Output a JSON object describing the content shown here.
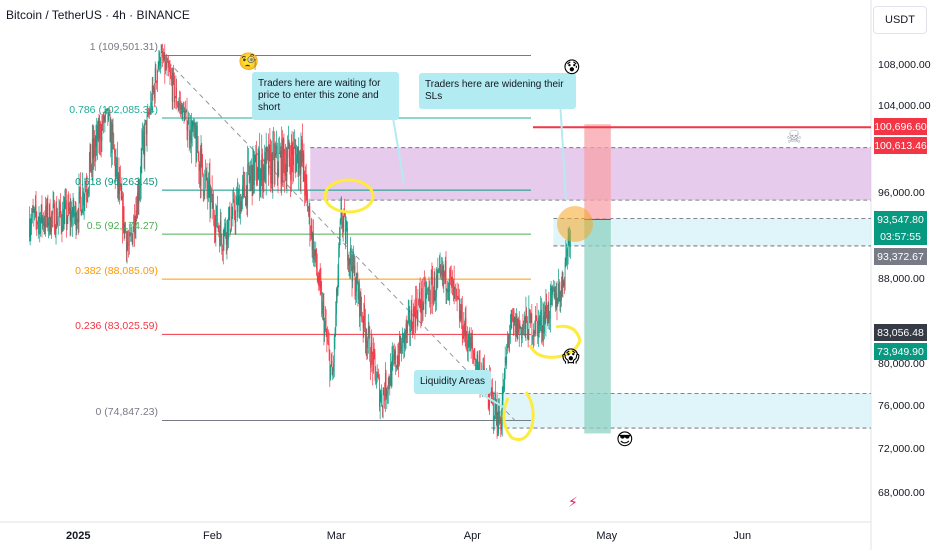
{
  "header": {
    "symbol": "Bitcoin / TetherUS · 4h · BINANCE",
    "currency": "USDT"
  },
  "chart_data": {
    "type": "candlestick",
    "ylim": [
      66500,
      112000
    ],
    "y_ticks": [
      {
        "value": 108000,
        "label": "108,000.00"
      },
      {
        "value": 104000,
        "label": "104,000.00"
      },
      {
        "value": 96000,
        "label": "96,000.00"
      },
      {
        "value": 88000,
        "label": "88,000.00"
      },
      {
        "value": 80000,
        "label": "80,000.00"
      },
      {
        "value": 76000,
        "label": "76,000.00"
      },
      {
        "value": 72000,
        "label": "72,000.00"
      },
      {
        "value": 68000,
        "label": "68,000.00"
      }
    ],
    "x_ticks": [
      {
        "label": "2025",
        "date": "2025-01-01"
      },
      {
        "label": "Feb",
        "date": "2025-02-01"
      },
      {
        "label": "Mar",
        "date": "2025-03-01"
      },
      {
        "label": "Apr",
        "date": "2025-04-01"
      },
      {
        "label": "May",
        "date": "2025-05-01"
      },
      {
        "label": "Jun",
        "date": "2025-06-01"
      }
    ],
    "price_tags": [
      {
        "value": 100696.6,
        "label": "100,696.60",
        "color": "#f23645"
      },
      {
        "value": 100613.46,
        "label": "100,613.46",
        "color": "#f23645"
      },
      {
        "value": 93547.8,
        "label": "93,547.80",
        "color": "#089981"
      },
      {
        "value": 93372.67,
        "label": "93,372.67",
        "color": "#787b86"
      },
      {
        "value": 83056.48,
        "label": "83,056.48",
        "color": "#363a45"
      },
      {
        "value": 73949.9,
        "label": "73,949.90",
        "color": "#089981"
      }
    ],
    "countdown": "03:57:55",
    "fib_levels": [
      {
        "ratio": "1",
        "value": 109501.31,
        "label": "1 (109,501.31)",
        "color": "#787b86"
      },
      {
        "ratio": "0.786",
        "value": 102085.34,
        "label": "0.786 (102,085.34)",
        "color": "#22ab94"
      },
      {
        "ratio": "0.618",
        "value": 96263.45,
        "label": "0.618 (96,263.45)",
        "color": "#089981"
      },
      {
        "ratio": "0.5",
        "value": 92174.27,
        "label": "0.5 (92,174.27)",
        "color": "#4caf50"
      },
      {
        "ratio": "0.382",
        "value": 88085.09,
        "label": "0.382 (88,085.09)",
        "color": "#ff9800"
      },
      {
        "ratio": "0.236",
        "value": 83025.59,
        "label": "0.236 (83,025.59)",
        "color": "#f23645"
      },
      {
        "ratio": "0",
        "value": 74847.23,
        "label": "0 (74,847.23)",
        "color": "#787b86"
      }
    ],
    "anchors": [
      {
        "date": "2025-01-01",
        "price": 94000
      },
      {
        "date": "2025-01-08",
        "price": 102500
      },
      {
        "date": "2025-01-13",
        "price": 90500
      },
      {
        "date": "2025-01-20",
        "price": 109500
      },
      {
        "date": "2025-01-24",
        "price": 104500
      },
      {
        "date": "2025-02-03",
        "price": 92000
      },
      {
        "date": "2025-02-10",
        "price": 97500
      },
      {
        "date": "2025-02-21",
        "price": 98800
      },
      {
        "date": "2025-02-26",
        "price": 84500
      },
      {
        "date": "2025-02-28",
        "price": 78500
      },
      {
        "date": "2025-03-02",
        "price": 94000
      },
      {
        "date": "2025-03-11",
        "price": 76800
      },
      {
        "date": "2025-03-19",
        "price": 85500
      },
      {
        "date": "2025-03-26",
        "price": 88500
      },
      {
        "date": "2025-03-31",
        "price": 82000
      },
      {
        "date": "2025-04-07",
        "price": 74600
      },
      {
        "date": "2025-04-09",
        "price": 83500
      },
      {
        "date": "2025-04-16",
        "price": 84000
      },
      {
        "date": "2025-04-21",
        "price": 87500
      },
      {
        "date": "2025-04-23",
        "price": 93600
      }
    ],
    "zones": [
      {
        "name": "short-entry-zone",
        "from_date": "2025-02-23",
        "to_date": "2025-06-30",
        "top": 99200,
        "bottom": 95400,
        "color": "#e1bee7"
      },
      {
        "name": "current-range-zone",
        "from_date": "2025-04-19",
        "to_date": "2025-06-30",
        "top": 93600,
        "bottom": 91100,
        "color": "#d8f3f9"
      },
      {
        "name": "liquidity-zone",
        "from_date": "2025-04-05",
        "to_date": "2025-06-30",
        "top": 77300,
        "bottom": 74200,
        "color": "#d8f3f9"
      }
    ],
    "position": {
      "from_date": "2025-04-26",
      "to_date": "2025-05-02",
      "stop": 101000,
      "entry": 93500,
      "target": 73700
    },
    "annotations": [
      {
        "name": "short-zone-note",
        "text": "Traders here are waiting for price to enter this zone and short"
      },
      {
        "name": "sl-note",
        "text": "Traders here are widening their SLs"
      },
      {
        "name": "liquidity-note",
        "text": "Liquidity Areas"
      }
    ]
  }
}
